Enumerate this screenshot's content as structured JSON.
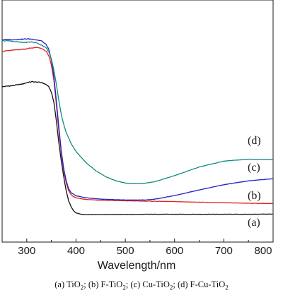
{
  "chart_data": {
    "type": "line",
    "xlabel": "Wavelength/nm",
    "ylabel": "",
    "xlim": [
      250,
      800
    ],
    "ylim": [
      0,
      1
    ],
    "x_ticks": [
      300,
      400,
      500,
      600,
      700,
      800
    ],
    "grid": false,
    "series": [
      {
        "name": "(a)",
        "color": "#111111",
        "x": [
          250,
          260,
          270,
          280,
          290,
          300,
          310,
          320,
          330,
          340,
          345,
          350,
          355,
          360,
          365,
          370,
          375,
          380,
          385,
          390,
          395,
          400,
          410,
          420,
          430,
          450,
          500,
          550,
          600,
          650,
          700,
          750,
          800
        ],
        "values": [
          0.667,
          0.67,
          0.672,
          0.676,
          0.68,
          0.687,
          0.692,
          0.69,
          0.688,
          0.677,
          0.665,
          0.64,
          0.59,
          0.5,
          0.39,
          0.3,
          0.22,
          0.15,
          0.1,
          0.07,
          0.05,
          0.04,
          0.033,
          0.031,
          0.031,
          0.032,
          0.032,
          0.033,
          0.033,
          0.033,
          0.033,
          0.033,
          0.034
        ]
      },
      {
        "name": "(b)",
        "color": "#e02020",
        "x": [
          250,
          260,
          270,
          280,
          290,
          300,
          310,
          320,
          330,
          340,
          345,
          350,
          355,
          360,
          365,
          370,
          375,
          380,
          385,
          390,
          395,
          400,
          410,
          420,
          440,
          460,
          500,
          550,
          600,
          650,
          700,
          750,
          800
        ],
        "values": [
          0.842,
          0.846,
          0.848,
          0.851,
          0.853,
          0.856,
          0.86,
          0.862,
          0.858,
          0.84,
          0.82,
          0.775,
          0.7,
          0.58,
          0.45,
          0.34,
          0.25,
          0.19,
          0.15,
          0.13,
          0.12,
          0.115,
          0.11,
          0.107,
          0.104,
          0.102,
          0.1,
          0.098,
          0.096,
          0.093,
          0.09,
          0.088,
          0.086
        ]
      },
      {
        "name": "(c)",
        "color": "#1f22c8",
        "x": [
          250,
          260,
          270,
          280,
          290,
          300,
          310,
          320,
          330,
          340,
          345,
          350,
          355,
          360,
          365,
          370,
          375,
          380,
          385,
          390,
          400,
          420,
          450,
          500,
          540,
          560,
          600,
          650,
          700,
          750,
          800
        ],
        "values": [
          0.9,
          0.902,
          0.901,
          0.902,
          0.903,
          0.905,
          0.904,
          0.9,
          0.895,
          0.875,
          0.85,
          0.8,
          0.72,
          0.6,
          0.47,
          0.35,
          0.26,
          0.2,
          0.16,
          0.14,
          0.125,
          0.115,
          0.108,
          0.104,
          0.104,
          0.108,
          0.126,
          0.154,
          0.18,
          0.199,
          0.21
        ]
      },
      {
        "name": "(d)",
        "color": "#138a7c",
        "x": [
          250,
          260,
          270,
          280,
          290,
          300,
          310,
          320,
          330,
          340,
          345,
          350,
          355,
          360,
          365,
          370,
          375,
          380,
          390,
          400,
          420,
          440,
          460,
          480,
          500,
          520,
          540,
          560,
          600,
          650,
          700,
          750,
          800
        ],
        "values": [
          0.895,
          0.897,
          0.893,
          0.89,
          0.887,
          0.888,
          0.89,
          0.885,
          0.875,
          0.858,
          0.84,
          0.805,
          0.75,
          0.68,
          0.6,
          0.53,
          0.48,
          0.44,
          0.385,
          0.345,
          0.29,
          0.25,
          0.22,
          0.2,
          0.188,
          0.185,
          0.187,
          0.195,
          0.225,
          0.268,
          0.297,
          0.307,
          0.305
        ]
      }
    ],
    "annotations": [
      "(a)",
      "(b)",
      "(c)",
      "(d)"
    ]
  },
  "caption": {
    "a": "(a) TiO",
    "a_sub": "2",
    "b": ";  (b) F-TiO",
    "b_sub": "2",
    "c": "; (c) Cu-TiO",
    "c_sub": "2",
    "d": "; (d) F-Cu-TiO",
    "d_sub": "2"
  }
}
